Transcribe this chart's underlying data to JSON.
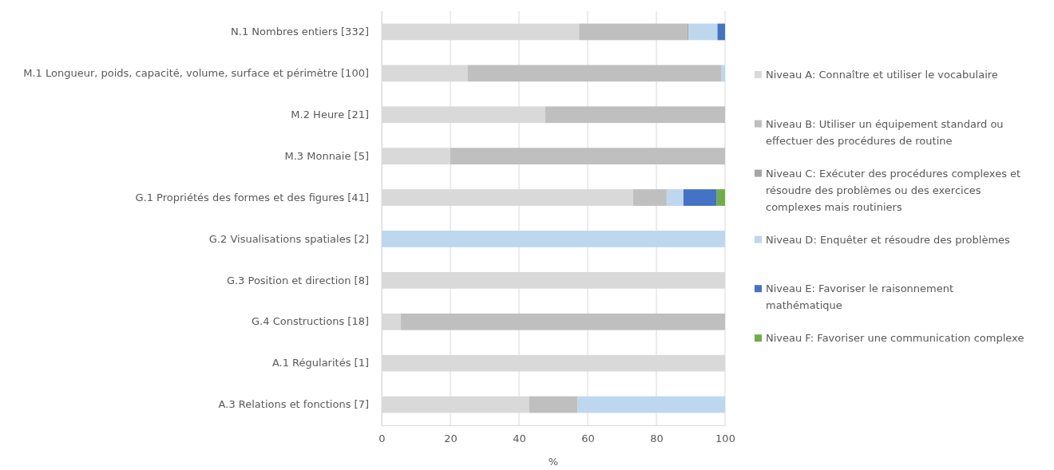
{
  "chart_data": {
    "type": "bar",
    "orientation": "horizontal",
    "stacked": true,
    "categories": [
      "N.1 Nombres entiers [332]",
      "M.1 Longueur, poids, capacité, volume, surface et périmètre [100]",
      "M.2 Heure [21]",
      "M.3 Monnaie [5]",
      "G.1 Propriétés des formes et des figures [41]",
      "G.2 Visualisations spatiales [2]",
      "G.3 Position et direction [8]",
      "G.4 Constructions [18]",
      "A.1 Régularités [1]",
      "A.3 Relations et fonctions [7]"
    ],
    "series": [
      {
        "name": "Niveau A: Connaître et utiliser le vocabulaire",
        "color": "#d9d9d9",
        "values": [
          57.5,
          25,
          47.6,
          20,
          73.2,
          0,
          100,
          5.6,
          100,
          42.9
        ]
      },
      {
        "name": "Niveau B: Utiliser un équipement standard ou effectuer des procédures de routine",
        "color": "#bfbfbf",
        "values": [
          31.5,
          74,
          52.4,
          80,
          9.8,
          0,
          0,
          94.4,
          0,
          14.2
        ]
      },
      {
        "name": "Niveau C: Exécuter des procédures complexes et résoudre des problèmes ou des exercices complexes mais routiniers",
        "color": "#a5a5a5",
        "values": [
          0.4,
          0,
          0,
          0,
          0,
          0,
          0,
          0,
          0,
          0
        ]
      },
      {
        "name": "Niveau D: Enquêter et résoudre des problèmes",
        "color": "#bdd7ee",
        "values": [
          8.4,
          1,
          0,
          0,
          4.9,
          100,
          0,
          0,
          0,
          42.9
        ]
      },
      {
        "name": "Niveau E: Favoriser le raisonnement mathématique",
        "color": "#4472c4",
        "values": [
          2.2,
          0,
          0,
          0,
          9.7,
          0,
          0,
          0,
          0,
          0
        ]
      },
      {
        "name": "Niveau F: Favoriser une communication complexe",
        "color": "#70ad47",
        "values": [
          0,
          0,
          0,
          0,
          2.4,
          0,
          0,
          0,
          0,
          0
        ]
      }
    ],
    "xlabel": "%",
    "xlim": [
      0,
      100
    ],
    "xticks": [
      0,
      20,
      40,
      60,
      80,
      100
    ],
    "grid": "x",
    "legend": "right"
  }
}
